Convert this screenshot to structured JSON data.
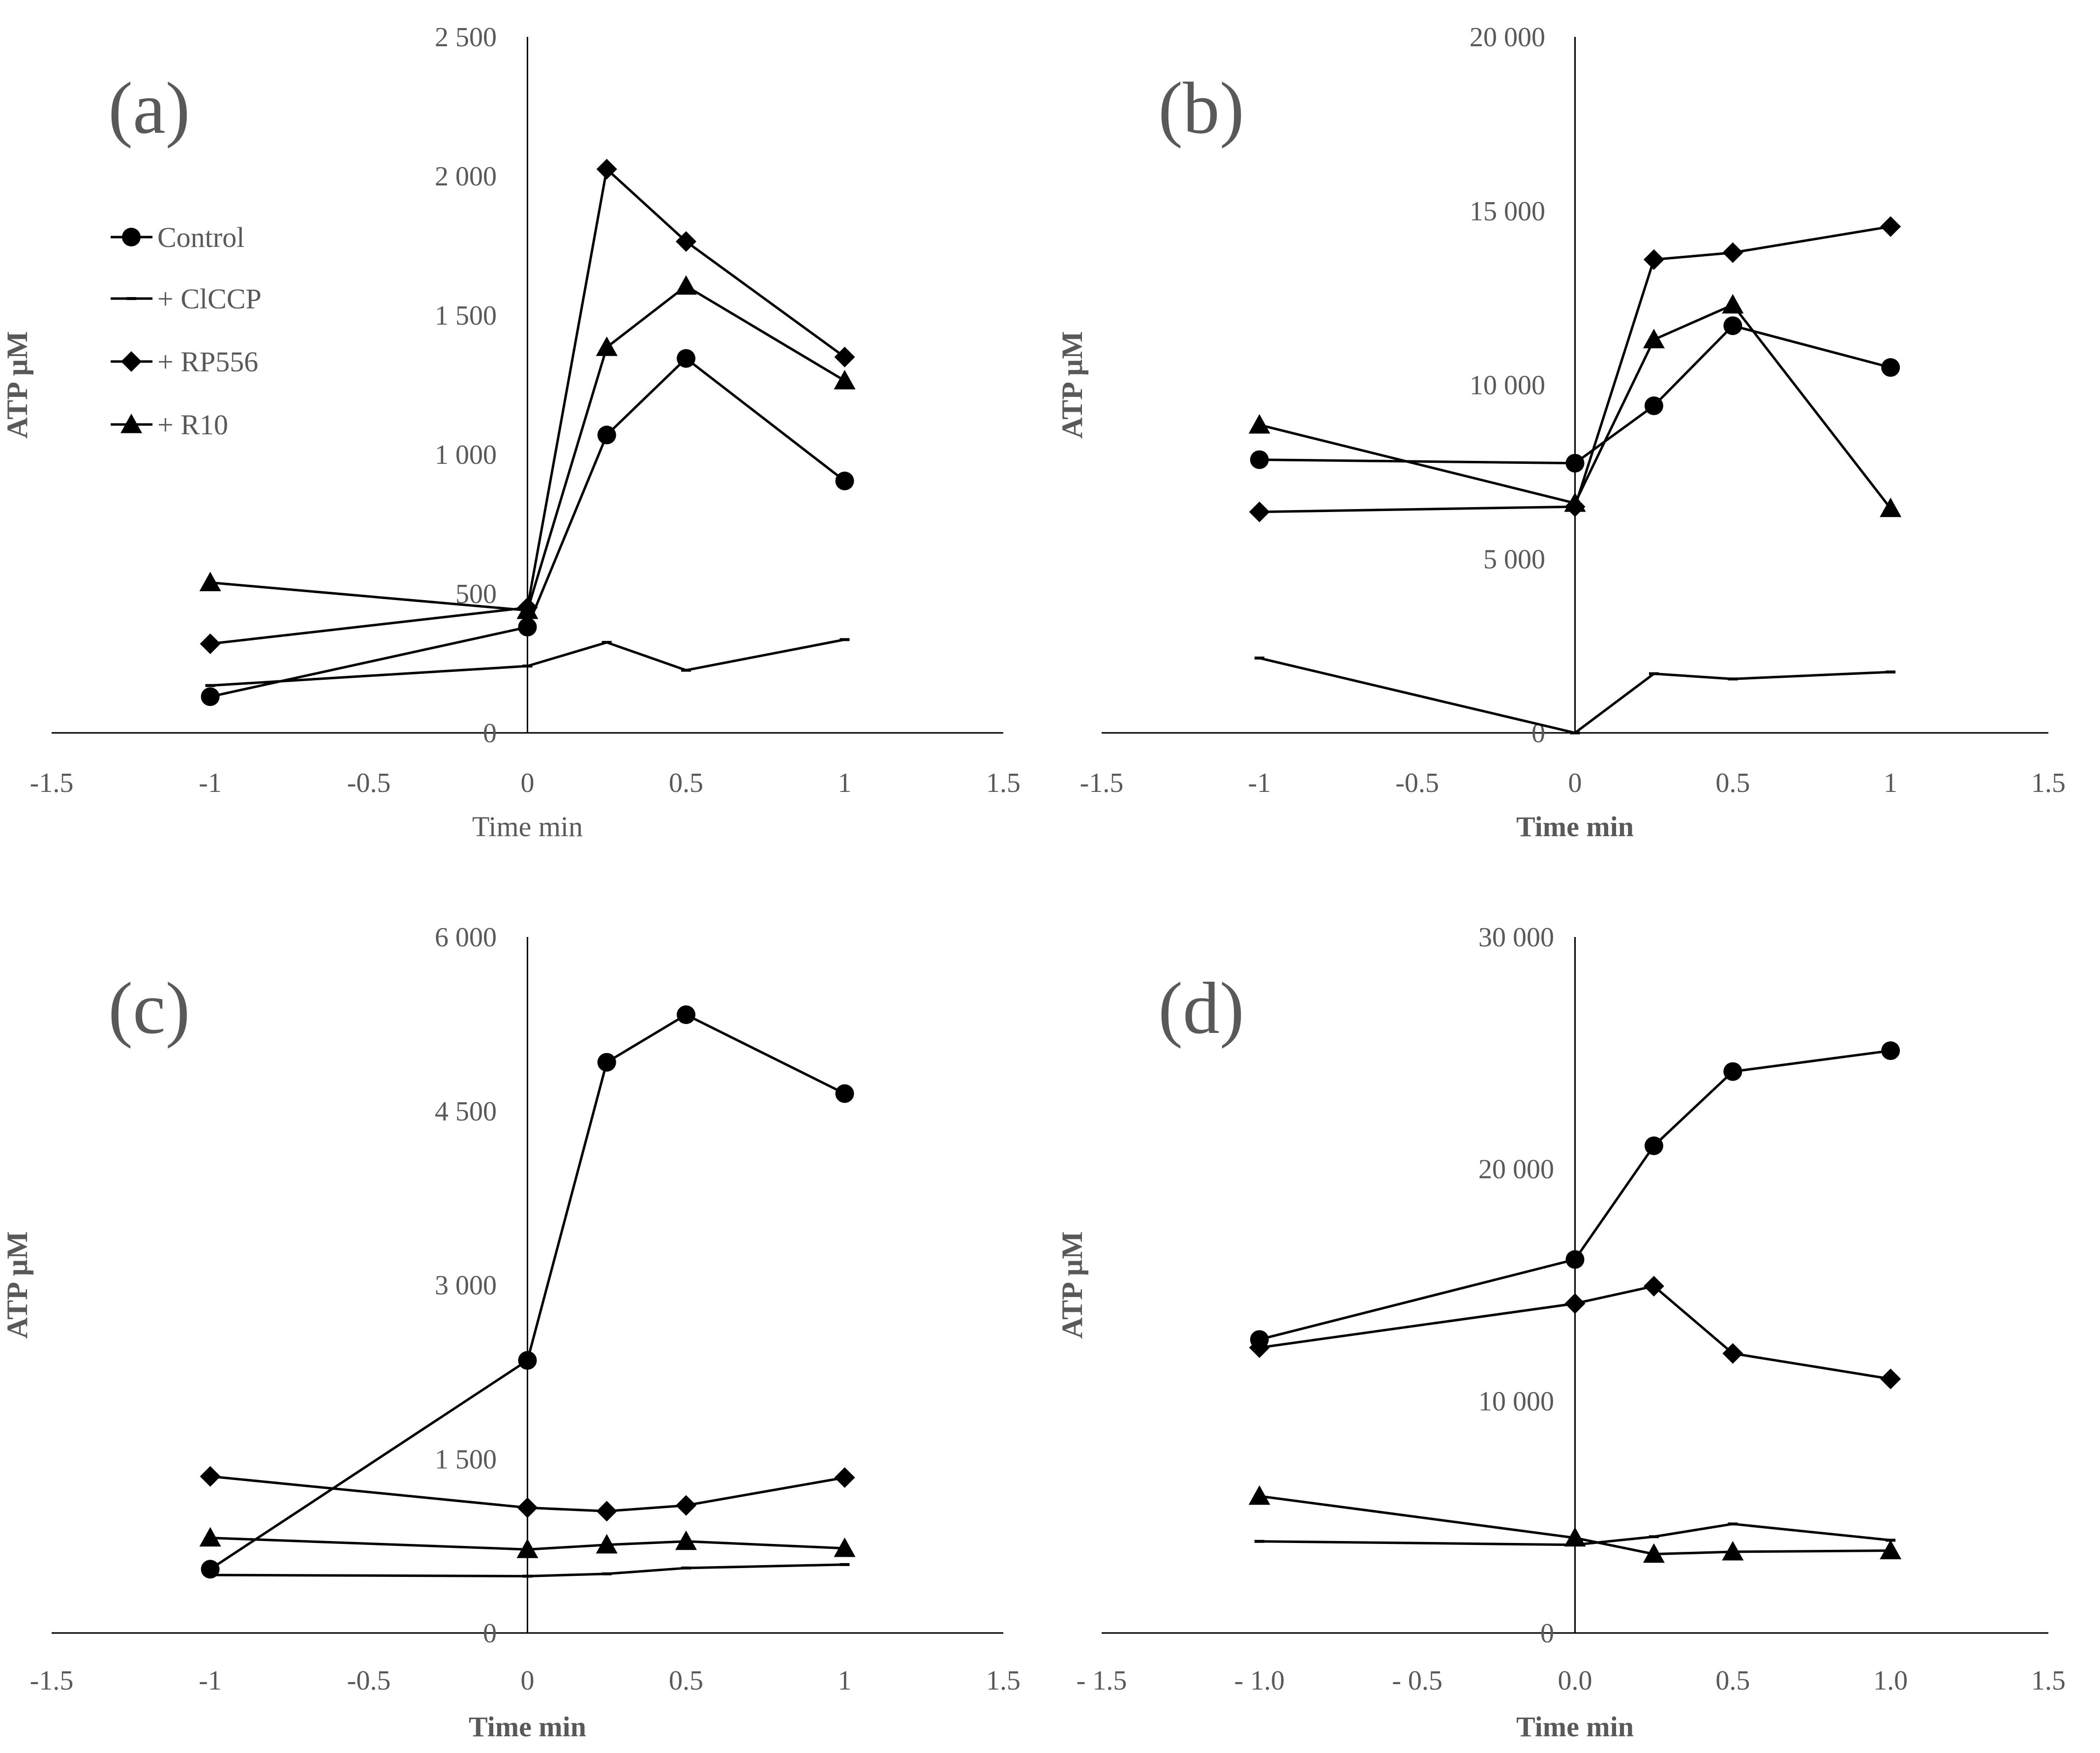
{
  "colors": {
    "line": "#000000",
    "axis": "#000000",
    "text": "#595959",
    "background": "#ffffff"
  },
  "legend": [
    {
      "name": "Control",
      "marker": "circle"
    },
    {
      "name": "+ ClCCP",
      "marker": "dash"
    },
    {
      "name": "+ RP556",
      "marker": "diamond"
    },
    {
      "name": "+ R10",
      "marker": "triangle"
    }
  ],
  "chart_data": [
    {
      "type": "line",
      "panel_label": "(a)",
      "xlabel": "Time min",
      "xlabel_bold": false,
      "ylabel": "ATP µM",
      "xlim": [
        -1.5,
        1.5
      ],
      "ylim": [
        0,
        2500
      ],
      "x_ticks": [
        "-1.5",
        "-1",
        "-0.5",
        "0",
        "0.5",
        "1",
        "1.5"
      ],
      "y_ticks": [
        "0",
        "500",
        "1 000",
        "1 500",
        "2 000",
        "2 500"
      ],
      "x": [
        -1,
        0,
        0.25,
        0.5,
        1
      ],
      "series": [
        {
          "name": "Control",
          "marker": "circle",
          "values": [
            130,
            380,
            1070,
            1345,
            905
          ]
        },
        {
          "name": "+ ClCCP",
          "marker": "dash",
          "values": [
            170,
            240,
            325,
            225,
            335
          ]
        },
        {
          "name": "+ RP556",
          "marker": "diamond",
          "values": [
            320,
            450,
            2025,
            1765,
            1350
          ]
        },
        {
          "name": "+ R10",
          "marker": "triangle",
          "values": [
            540,
            440,
            1385,
            1605,
            1265
          ]
        }
      ]
    },
    {
      "type": "line",
      "panel_label": "(b)",
      "xlabel": "Time min",
      "xlabel_bold": true,
      "ylabel": "ATP µM",
      "xlim": [
        -1.5,
        1.5
      ],
      "ylim": [
        0,
        20000
      ],
      "x_ticks": [
        "-1.5",
        "-1",
        "-0.5",
        "0",
        "0.5",
        "1",
        "1.5"
      ],
      "y_ticks": [
        "0",
        "5 000",
        "10 000",
        "15 000",
        "20 000"
      ],
      "x": [
        -1,
        0,
        0.25,
        0.5,
        1
      ],
      "series": [
        {
          "name": "Control",
          "marker": "circle",
          "values": [
            7850,
            7750,
            9400,
            11700,
            10500
          ]
        },
        {
          "name": "+ ClCCP",
          "marker": "dash",
          "values": [
            2150,
            0,
            1700,
            1550,
            1750
          ]
        },
        {
          "name": "+ RP556",
          "marker": "diamond",
          "values": [
            6350,
            6500,
            13600,
            13800,
            14550
          ]
        },
        {
          "name": "+ R10",
          "marker": "triangle",
          "values": [
            8850,
            6600,
            11300,
            12300,
            6450
          ]
        }
      ]
    },
    {
      "type": "line",
      "panel_label": "(c)",
      "xlabel": "Time min",
      "xlabel_bold": true,
      "ylabel": "ATP µM",
      "xlim": [
        -1.5,
        1.5
      ],
      "ylim": [
        0,
        6000
      ],
      "x_ticks": [
        "-1.5",
        "-1",
        "-0.5",
        "0",
        "0.5",
        "1",
        "1.5"
      ],
      "y_ticks": [
        "0",
        "1 500",
        "3 000",
        "4 500",
        "6 000"
      ],
      "x": [
        -1,
        0,
        0.25,
        0.5,
        1
      ],
      "series": [
        {
          "name": "Control",
          "marker": "circle",
          "values": [
            550,
            2350,
            4920,
            5330,
            4650
          ]
        },
        {
          "name": "+ ClCCP",
          "marker": "dash",
          "values": [
            500,
            490,
            510,
            560,
            590
          ]
        },
        {
          "name": "+ RP556",
          "marker": "diamond",
          "values": [
            1350,
            1080,
            1050,
            1100,
            1340
          ]
        },
        {
          "name": "+ R10",
          "marker": "triangle",
          "values": [
            820,
            720,
            760,
            790,
            730
          ]
        }
      ]
    },
    {
      "type": "line",
      "panel_label": "(d)",
      "xlabel": "Time min",
      "xlabel_bold": true,
      "ylabel": "ATP µM",
      "xlim": [
        -1.5,
        1.5
      ],
      "ylim": [
        0,
        30000
      ],
      "x_ticks": [
        "- 1.5",
        "- 1.0",
        "- 0.5",
        "0.0",
        "0.5",
        "1.0",
        "1.5"
      ],
      "y_ticks": [
        "0",
        "10 000",
        "20 000",
        "30 000"
      ],
      "x": [
        -1,
        0,
        0.25,
        0.5,
        1
      ],
      "series": [
        {
          "name": "Control",
          "marker": "circle",
          "values": [
            12650,
            16100,
            21000,
            24200,
            25100
          ]
        },
        {
          "name": "+ ClCCP",
          "marker": "dash",
          "values": [
            3950,
            3800,
            4150,
            4700,
            4000
          ]
        },
        {
          "name": "+ RP556",
          "marker": "diamond",
          "values": [
            12300,
            14200,
            14950,
            12050,
            10950
          ]
        },
        {
          "name": "+ R10",
          "marker": "triangle",
          "values": [
            5900,
            4100,
            3400,
            3500,
            3550
          ]
        }
      ]
    }
  ]
}
